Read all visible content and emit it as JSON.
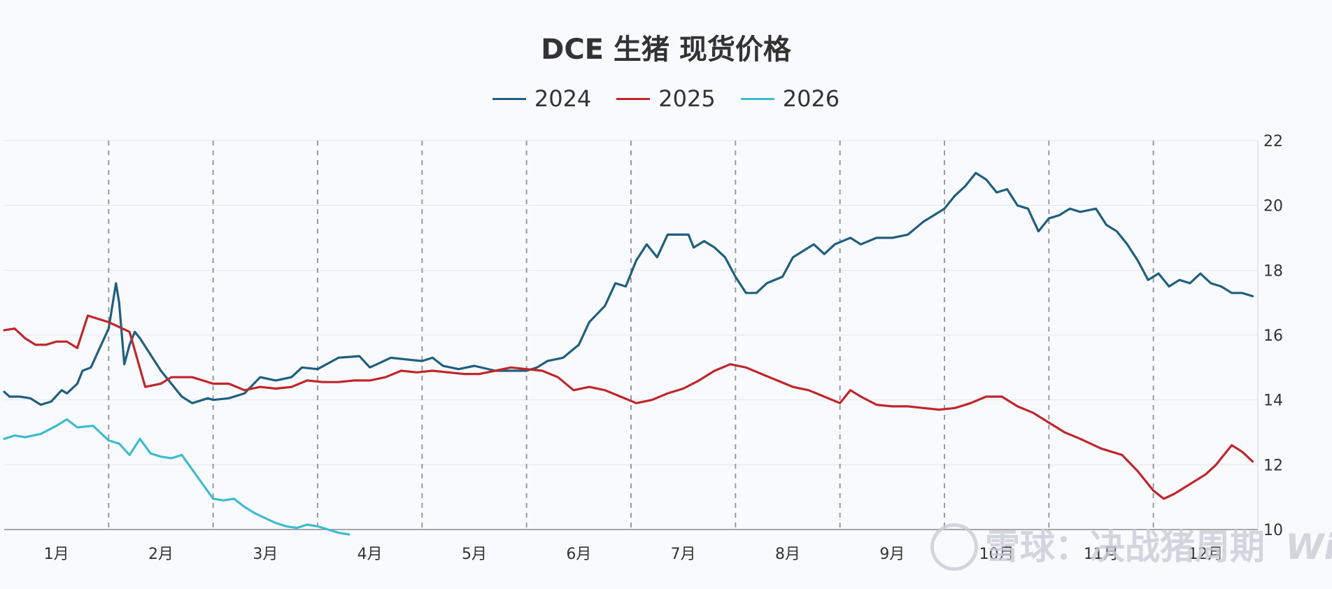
{
  "chart_data": {
    "type": "line",
    "title": "DCE 生猪 现货价格",
    "xlabel": "",
    "ylabel": "",
    "ylim": [
      10,
      22
    ],
    "yticks": [
      "10",
      "12",
      "14",
      "16",
      "18",
      "20",
      "22"
    ],
    "x_domain": [
      1,
      13
    ],
    "months": [
      "1月",
      "2月",
      "3月",
      "4月",
      "5月",
      "6月",
      "7月",
      "8月",
      "9月",
      "10月",
      "11月",
      "12月"
    ],
    "grid": true,
    "legend": "top-center",
    "series": [
      {
        "name": "2024",
        "color": "#1f5f7e",
        "points": [
          [
            1.0,
            14.25
          ],
          [
            1.05,
            14.1
          ],
          [
            1.15,
            14.1
          ],
          [
            1.25,
            14.05
          ],
          [
            1.35,
            13.85
          ],
          [
            1.45,
            13.95
          ],
          [
            1.55,
            14.3
          ],
          [
            1.6,
            14.2
          ],
          [
            1.7,
            14.5
          ],
          [
            1.75,
            14.9
          ],
          [
            1.83,
            15.0
          ],
          [
            1.9,
            15.5
          ],
          [
            2.0,
            16.2
          ],
          [
            2.07,
            17.6
          ],
          [
            2.1,
            17.0
          ],
          [
            2.15,
            15.1
          ],
          [
            2.2,
            15.7
          ],
          [
            2.25,
            16.1
          ],
          [
            2.3,
            15.9
          ],
          [
            2.5,
            14.9
          ],
          [
            2.7,
            14.1
          ],
          [
            2.8,
            13.9
          ],
          [
            2.95,
            14.05
          ],
          [
            3.0,
            14.0
          ],
          [
            3.15,
            14.05
          ],
          [
            3.3,
            14.2
          ],
          [
            3.45,
            14.7
          ],
          [
            3.6,
            14.6
          ],
          [
            3.75,
            14.7
          ],
          [
            3.85,
            15.0
          ],
          [
            4.0,
            14.95
          ],
          [
            4.2,
            15.3
          ],
          [
            4.4,
            15.35
          ],
          [
            4.5,
            15.0
          ],
          [
            4.6,
            15.15
          ],
          [
            4.7,
            15.3
          ],
          [
            4.85,
            15.25
          ],
          [
            5.0,
            15.2
          ],
          [
            5.1,
            15.3
          ],
          [
            5.2,
            15.05
          ],
          [
            5.35,
            14.95
          ],
          [
            5.5,
            15.05
          ],
          [
            5.7,
            14.9
          ],
          [
            6.0,
            14.9
          ],
          [
            6.1,
            15.0
          ],
          [
            6.2,
            15.2
          ],
          [
            6.35,
            15.3
          ],
          [
            6.5,
            15.7
          ],
          [
            6.6,
            16.4
          ],
          [
            6.75,
            16.9
          ],
          [
            6.85,
            17.6
          ],
          [
            6.95,
            17.5
          ],
          [
            7.05,
            18.3
          ],
          [
            7.15,
            18.8
          ],
          [
            7.25,
            18.4
          ],
          [
            7.35,
            19.1
          ],
          [
            7.55,
            19.1
          ],
          [
            7.6,
            18.7
          ],
          [
            7.7,
            18.9
          ],
          [
            7.8,
            18.7
          ],
          [
            7.9,
            18.4
          ],
          [
            8.0,
            17.8
          ],
          [
            8.1,
            17.3
          ],
          [
            8.2,
            17.3
          ],
          [
            8.3,
            17.6
          ],
          [
            8.45,
            17.8
          ],
          [
            8.55,
            18.4
          ],
          [
            8.65,
            18.6
          ],
          [
            8.75,
            18.8
          ],
          [
            8.85,
            18.5
          ],
          [
            8.95,
            18.8
          ],
          [
            9.1,
            19.0
          ],
          [
            9.2,
            18.8
          ],
          [
            9.35,
            19.0
          ],
          [
            9.5,
            19.0
          ],
          [
            9.65,
            19.1
          ],
          [
            9.8,
            19.5
          ],
          [
            9.9,
            19.7
          ],
          [
            10.0,
            19.9
          ],
          [
            10.1,
            20.3
          ],
          [
            10.2,
            20.6
          ],
          [
            10.3,
            21.0
          ],
          [
            10.4,
            20.8
          ],
          [
            10.5,
            20.4
          ],
          [
            10.6,
            20.5
          ],
          [
            10.7,
            20.0
          ],
          [
            10.8,
            19.9
          ],
          [
            10.9,
            19.2
          ],
          [
            11.0,
            19.6
          ],
          [
            11.1,
            19.7
          ],
          [
            11.2,
            19.9
          ],
          [
            11.3,
            19.8
          ],
          [
            11.45,
            19.9
          ],
          [
            11.55,
            19.4
          ],
          [
            11.65,
            19.2
          ],
          [
            11.75,
            18.8
          ],
          [
            11.85,
            18.3
          ],
          [
            11.95,
            17.7
          ],
          [
            12.05,
            17.9
          ],
          [
            12.15,
            17.5
          ],
          [
            12.25,
            17.7
          ],
          [
            12.35,
            17.6
          ],
          [
            12.45,
            17.9
          ],
          [
            12.55,
            17.6
          ],
          [
            12.65,
            17.5
          ],
          [
            12.75,
            17.3
          ],
          [
            12.85,
            17.3
          ],
          [
            12.95,
            17.2
          ]
        ]
      },
      {
        "name": "2025",
        "color": "#c0262b",
        "points": [
          [
            1.0,
            16.15
          ],
          [
            1.1,
            16.2
          ],
          [
            1.2,
            15.9
          ],
          [
            1.3,
            15.7
          ],
          [
            1.4,
            15.7
          ],
          [
            1.5,
            15.8
          ],
          [
            1.6,
            15.8
          ],
          [
            1.7,
            15.6
          ],
          [
            1.8,
            16.6
          ],
          [
            2.0,
            16.4
          ],
          [
            2.2,
            16.1
          ],
          [
            2.35,
            14.4
          ],
          [
            2.5,
            14.5
          ],
          [
            2.6,
            14.7
          ],
          [
            2.8,
            14.7
          ],
          [
            3.0,
            14.5
          ],
          [
            3.15,
            14.5
          ],
          [
            3.3,
            14.3
          ],
          [
            3.45,
            14.4
          ],
          [
            3.6,
            14.35
          ],
          [
            3.75,
            14.4
          ],
          [
            3.9,
            14.6
          ],
          [
            4.05,
            14.55
          ],
          [
            4.2,
            14.55
          ],
          [
            4.35,
            14.6
          ],
          [
            4.5,
            14.6
          ],
          [
            4.65,
            14.7
          ],
          [
            4.8,
            14.9
          ],
          [
            4.95,
            14.85
          ],
          [
            5.1,
            14.9
          ],
          [
            5.25,
            14.85
          ],
          [
            5.4,
            14.8
          ],
          [
            5.55,
            14.8
          ],
          [
            5.7,
            14.9
          ],
          [
            5.85,
            15.0
          ],
          [
            6.0,
            14.95
          ],
          [
            6.15,
            14.9
          ],
          [
            6.3,
            14.7
          ],
          [
            6.45,
            14.3
          ],
          [
            6.6,
            14.4
          ],
          [
            6.75,
            14.3
          ],
          [
            6.9,
            14.1
          ],
          [
            7.05,
            13.9
          ],
          [
            7.2,
            14.0
          ],
          [
            7.35,
            14.2
          ],
          [
            7.5,
            14.35
          ],
          [
            7.65,
            14.6
          ],
          [
            7.8,
            14.9
          ],
          [
            7.95,
            15.1
          ],
          [
            8.1,
            15.0
          ],
          [
            8.25,
            14.8
          ],
          [
            8.4,
            14.6
          ],
          [
            8.55,
            14.4
          ],
          [
            8.7,
            14.3
          ],
          [
            8.85,
            14.1
          ],
          [
            9.0,
            13.9
          ],
          [
            9.1,
            14.3
          ],
          [
            9.2,
            14.1
          ],
          [
            9.35,
            13.85
          ],
          [
            9.5,
            13.8
          ],
          [
            9.65,
            13.8
          ],
          [
            9.8,
            13.75
          ],
          [
            9.95,
            13.7
          ],
          [
            10.1,
            13.75
          ],
          [
            10.25,
            13.9
          ],
          [
            10.4,
            14.1
          ],
          [
            10.55,
            14.1
          ],
          [
            10.7,
            13.8
          ],
          [
            10.85,
            13.6
          ],
          [
            11.0,
            13.3
          ],
          [
            11.15,
            13.0
          ],
          [
            11.3,
            12.8
          ],
          [
            11.5,
            12.5
          ],
          [
            11.7,
            12.3
          ],
          [
            11.85,
            11.8
          ],
          [
            12.0,
            11.2
          ],
          [
            12.1,
            10.95
          ],
          [
            12.2,
            11.1
          ],
          [
            12.35,
            11.4
          ],
          [
            12.5,
            11.7
          ],
          [
            12.6,
            12.0
          ],
          [
            12.7,
            12.4
          ],
          [
            12.75,
            12.6
          ],
          [
            12.85,
            12.4
          ],
          [
            12.95,
            12.1
          ]
        ]
      },
      {
        "name": "2026",
        "color": "#3dbbcf",
        "points": [
          [
            1.0,
            12.8
          ],
          [
            1.1,
            12.9
          ],
          [
            1.2,
            12.85
          ],
          [
            1.35,
            12.95
          ],
          [
            1.5,
            13.2
          ],
          [
            1.6,
            13.4
          ],
          [
            1.7,
            13.15
          ],
          [
            1.85,
            13.2
          ],
          [
            2.0,
            12.75
          ],
          [
            2.1,
            12.65
          ],
          [
            2.2,
            12.3
          ],
          [
            2.3,
            12.8
          ],
          [
            2.4,
            12.35
          ],
          [
            2.5,
            12.25
          ],
          [
            2.6,
            12.2
          ],
          [
            2.7,
            12.3
          ],
          [
            3.0,
            10.95
          ],
          [
            3.1,
            10.9
          ],
          [
            3.2,
            10.95
          ],
          [
            3.3,
            10.7
          ],
          [
            3.4,
            10.5
          ],
          [
            3.5,
            10.35
          ],
          [
            3.6,
            10.2
          ],
          [
            3.7,
            10.1
          ],
          [
            3.8,
            10.05
          ],
          [
            3.9,
            10.15
          ],
          [
            4.0,
            10.1
          ],
          [
            4.1,
            10.0
          ],
          [
            4.2,
            9.9
          ],
          [
            4.3,
            9.85
          ]
        ]
      }
    ]
  },
  "watermark": {
    "text": "雪球：决战猪周期",
    "suffix": "Wind"
  }
}
